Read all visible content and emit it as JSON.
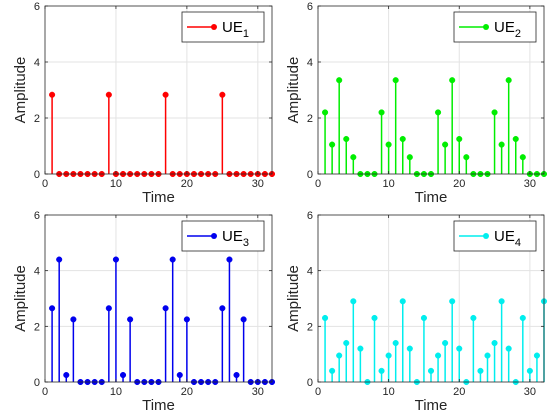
{
  "chart_data": [
    {
      "type": "stem",
      "xlabel": "Time",
      "ylabel": "Amplitude",
      "xlim": [
        0,
        32
      ],
      "ylim": [
        0,
        6
      ],
      "xticks": [
        0,
        10,
        20,
        30
      ],
      "yticks": [
        0,
        2,
        4,
        6
      ],
      "grid": true,
      "legend_position": "top-right",
      "series": [
        {
          "name": "UE",
          "subscript": "1",
          "color": "#ff0000",
          "x": [
            1,
            2,
            3,
            4,
            5,
            6,
            7,
            8,
            9,
            10,
            11,
            12,
            13,
            14,
            15,
            16,
            17,
            18,
            19,
            20,
            21,
            22,
            23,
            24,
            25,
            26,
            27,
            28,
            29,
            30,
            31,
            32
          ],
          "values": [
            2.83,
            0,
            0,
            0,
            0,
            0,
            0,
            0,
            2.83,
            0,
            0,
            0,
            0,
            0,
            0,
            0,
            2.83,
            0,
            0,
            0,
            0,
            0,
            0,
            0,
            2.83,
            0,
            0,
            0,
            0,
            0,
            0,
            0
          ]
        }
      ]
    },
    {
      "type": "stem",
      "xlabel": "Time",
      "ylabel": "Amplitude",
      "xlim": [
        0,
        32
      ],
      "ylim": [
        0,
        6
      ],
      "xticks": [
        0,
        10,
        20,
        30
      ],
      "yticks": [
        0,
        2,
        4,
        6
      ],
      "grid": true,
      "legend_position": "top-right",
      "series": [
        {
          "name": "UE",
          "subscript": "2",
          "color": "#00ee00",
          "x": [
            1,
            2,
            3,
            4,
            5,
            6,
            7,
            8,
            9,
            10,
            11,
            12,
            13,
            14,
            15,
            16,
            17,
            18,
            19,
            20,
            21,
            22,
            23,
            24,
            25,
            26,
            27,
            28,
            29,
            30,
            31,
            32
          ],
          "values": [
            2.2,
            1.05,
            3.35,
            1.25,
            0.6,
            0,
            0,
            0,
            2.2,
            1.05,
            3.35,
            1.25,
            0.6,
            0,
            0,
            0,
            2.2,
            1.05,
            3.35,
            1.25,
            0.6,
            0,
            0,
            0,
            2.2,
            1.05,
            3.35,
            1.25,
            0.6,
            0,
            0,
            0
          ]
        }
      ]
    },
    {
      "type": "stem",
      "xlabel": "Time",
      "ylabel": "Amplitude",
      "xlim": [
        0,
        32
      ],
      "ylim": [
        0,
        6
      ],
      "xticks": [
        0,
        10,
        20,
        30
      ],
      "yticks": [
        0,
        2,
        4,
        6
      ],
      "grid": true,
      "legend_position": "top-right",
      "series": [
        {
          "name": "UE",
          "subscript": "3",
          "color": "#0000ee",
          "x": [
            1,
            2,
            3,
            4,
            5,
            6,
            7,
            8,
            9,
            10,
            11,
            12,
            13,
            14,
            15,
            16,
            17,
            18,
            19,
            20,
            21,
            22,
            23,
            24,
            25,
            26,
            27,
            28,
            29,
            30,
            31,
            32
          ],
          "values": [
            2.65,
            4.4,
            0.25,
            2.25,
            0,
            0,
            0,
            0,
            2.65,
            4.4,
            0.25,
            2.25,
            0,
            0,
            0,
            0,
            2.65,
            4.4,
            0.25,
            2.25,
            0,
            0,
            0,
            0,
            2.65,
            4.4,
            0.25,
            2.25,
            0,
            0,
            0,
            0
          ]
        }
      ]
    },
    {
      "type": "stem",
      "xlabel": "Time",
      "ylabel": "Amplitude",
      "xlim": [
        0,
        32
      ],
      "ylim": [
        0,
        6
      ],
      "xticks": [
        0,
        10,
        20,
        30
      ],
      "yticks": [
        0,
        2,
        4,
        6
      ],
      "grid": true,
      "legend_position": "top-right",
      "series": [
        {
          "name": "UE",
          "subscript": "4",
          "color": "#00eeee",
          "x": [
            1,
            2,
            3,
            4,
            5,
            6,
            7,
            8,
            9,
            10,
            11,
            12,
            13,
            14,
            15,
            16,
            17,
            18,
            19,
            20,
            21,
            22,
            23,
            24,
            25,
            26,
            27,
            28,
            29,
            30,
            31,
            32
          ],
          "values": [
            2.3,
            0.4,
            0.95,
            1.4,
            2.9,
            1.2,
            0,
            2.3,
            0.4,
            0.95,
            1.4,
            2.9,
            1.2,
            0,
            2.3,
            0.4,
            0.95,
            1.4,
            2.9,
            1.2,
            0,
            2.3,
            0.4,
            0.95,
            1.4,
            2.9,
            1.2,
            0,
            2.3,
            0.4,
            0.95,
            2.9
          ]
        }
      ]
    }
  ]
}
